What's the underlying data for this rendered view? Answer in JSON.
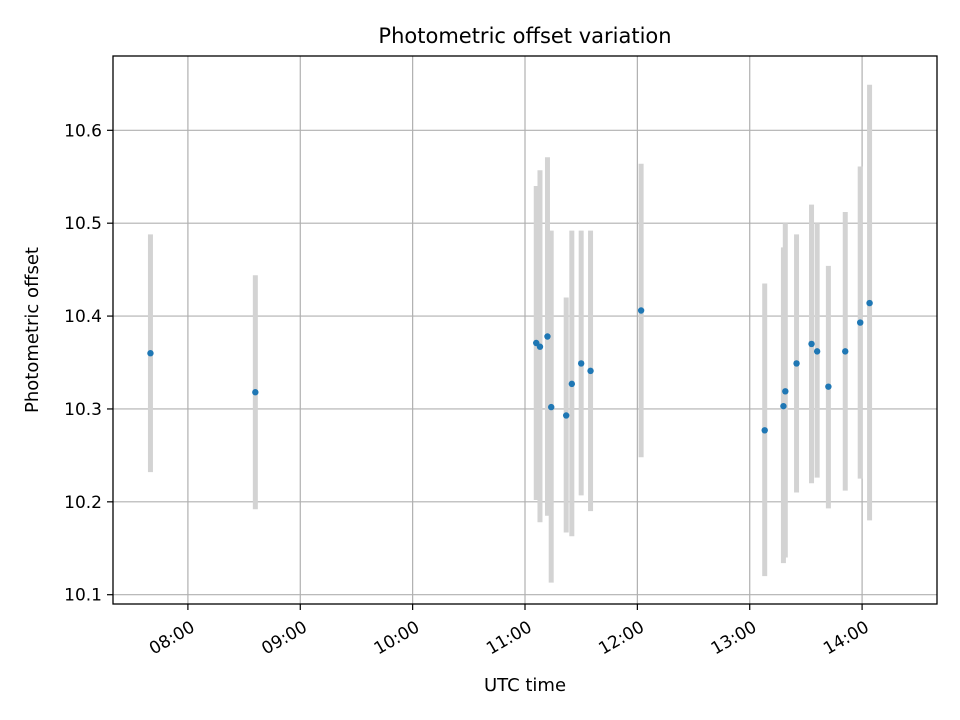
{
  "chart_data": {
    "type": "scatter",
    "title": "Photometric offset variation",
    "xlabel": "UTC time",
    "ylabel": "Photometric offset",
    "xlim": [
      "07:20",
      "14:40"
    ],
    "ylim": [
      10.09,
      10.68
    ],
    "x_ticks": [
      "08:00",
      "09:00",
      "10:00",
      "11:00",
      "12:00",
      "13:00",
      "14:00"
    ],
    "y_ticks": [
      10.1,
      10.2,
      10.3,
      10.4,
      10.5,
      10.6
    ],
    "grid": true,
    "colors": {
      "points": "#1f77b4",
      "errorbars": "#d3d3d3",
      "grid": "#b0b0b0"
    },
    "points": [
      {
        "t": "07:40",
        "y": 10.36,
        "lo": 10.232,
        "hi": 10.488
      },
      {
        "t": "08:36",
        "y": 10.318,
        "lo": 10.192,
        "hi": 10.444
      },
      {
        "t": "11:06",
        "y": 10.371,
        "lo": 10.202,
        "hi": 10.54
      },
      {
        "t": "11:08",
        "y": 10.367,
        "lo": 10.178,
        "hi": 10.557
      },
      {
        "t": "11:12",
        "y": 10.378,
        "lo": 10.185,
        "hi": 10.571
      },
      {
        "t": "11:14",
        "y": 10.302,
        "lo": 10.113,
        "hi": 10.492
      },
      {
        "t": "11:22",
        "y": 10.293,
        "lo": 10.167,
        "hi": 10.42
      },
      {
        "t": "11:25",
        "y": 10.327,
        "lo": 10.163,
        "hi": 10.492
      },
      {
        "t": "11:30",
        "y": 10.349,
        "lo": 10.207,
        "hi": 10.492
      },
      {
        "t": "11:35",
        "y": 10.341,
        "lo": 10.19,
        "hi": 10.492
      },
      {
        "t": "12:02",
        "y": 10.406,
        "lo": 10.248,
        "hi": 10.564
      },
      {
        "t": "13:08",
        "y": 10.277,
        "lo": 10.12,
        "hi": 10.435
      },
      {
        "t": "13:18",
        "y": 10.303,
        "lo": 10.134,
        "hi": 10.474
      },
      {
        "t": "13:19",
        "y": 10.319,
        "lo": 10.14,
        "hi": 10.5
      },
      {
        "t": "13:25",
        "y": 10.349,
        "lo": 10.21,
        "hi": 10.488
      },
      {
        "t": "13:33",
        "y": 10.37,
        "lo": 10.22,
        "hi": 10.52
      },
      {
        "t": "13:36",
        "y": 10.362,
        "lo": 10.226,
        "hi": 10.5
      },
      {
        "t": "13:42",
        "y": 10.324,
        "lo": 10.193,
        "hi": 10.454
      },
      {
        "t": "13:51",
        "y": 10.362,
        "lo": 10.212,
        "hi": 10.512
      },
      {
        "t": "13:59",
        "y": 10.393,
        "lo": 10.225,
        "hi": 10.561
      },
      {
        "t": "14:04",
        "y": 10.414,
        "lo": 10.18,
        "hi": 10.649
      }
    ]
  }
}
